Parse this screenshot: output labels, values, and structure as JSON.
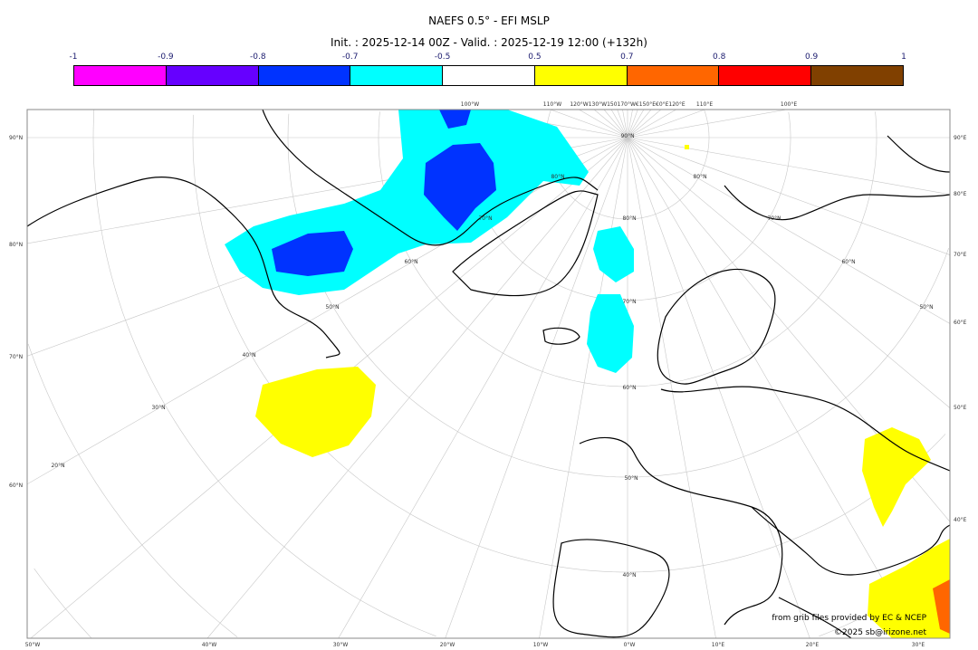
{
  "header": {
    "title": "NAEFS 0.5° - EFI MSLP",
    "subtitle": "Init. : 2025-12-14 00Z - Valid. : 2025-12-19 12:00 (+132h)"
  },
  "colorbar": {
    "labels": [
      "-1",
      "-0.9",
      "-0.8",
      "-0.7",
      "-0.5",
      "0.5",
      "0.7",
      "0.8",
      "0.9",
      "1"
    ],
    "colors": [
      "#ff00ff",
      "#6600ff",
      "#0033ff",
      "#00ffff",
      "#ffffff",
      "#ffff00",
      "#ff6600",
      "#ff0000",
      "#804000"
    ]
  },
  "map": {
    "projection": "polar stereographic",
    "left_labels": [
      "90°N",
      "80°N",
      "70°N",
      "60°N"
    ],
    "right_labels": [
      "90°E",
      "80°E",
      "70°E",
      "60°E",
      "50°E",
      "40°E"
    ],
    "bottom_labels": [
      "50°W",
      "40°W",
      "30°W",
      "20°W",
      "10°W",
      "0°W",
      "10°E",
      "20°E",
      "30°E"
    ],
    "top_labels": [
      "100°W",
      "110°W",
      "120°W130°W150170°W€150°E€0°E120°E",
      "110°E",
      "100°E"
    ],
    "inner_labels": [
      "90°N",
      "80°N",
      "80°N",
      "70°N",
      "80°N",
      "70°N",
      "70°N",
      "60°N",
      "60°N",
      "50°N",
      "50°N",
      "40°N",
      "30°N",
      "20°N",
      "60°N",
      "50°N",
      "40°N"
    ],
    "anomaly_colors": {
      "negative_strong": "#0033ff",
      "negative": "#00ffff",
      "positive": "#ffff00",
      "positive_strong": "#ff6600"
    }
  },
  "credits": {
    "source": "from grib files provided by EC & NCEP",
    "copyright": "©2025 sb@irizone.net"
  }
}
